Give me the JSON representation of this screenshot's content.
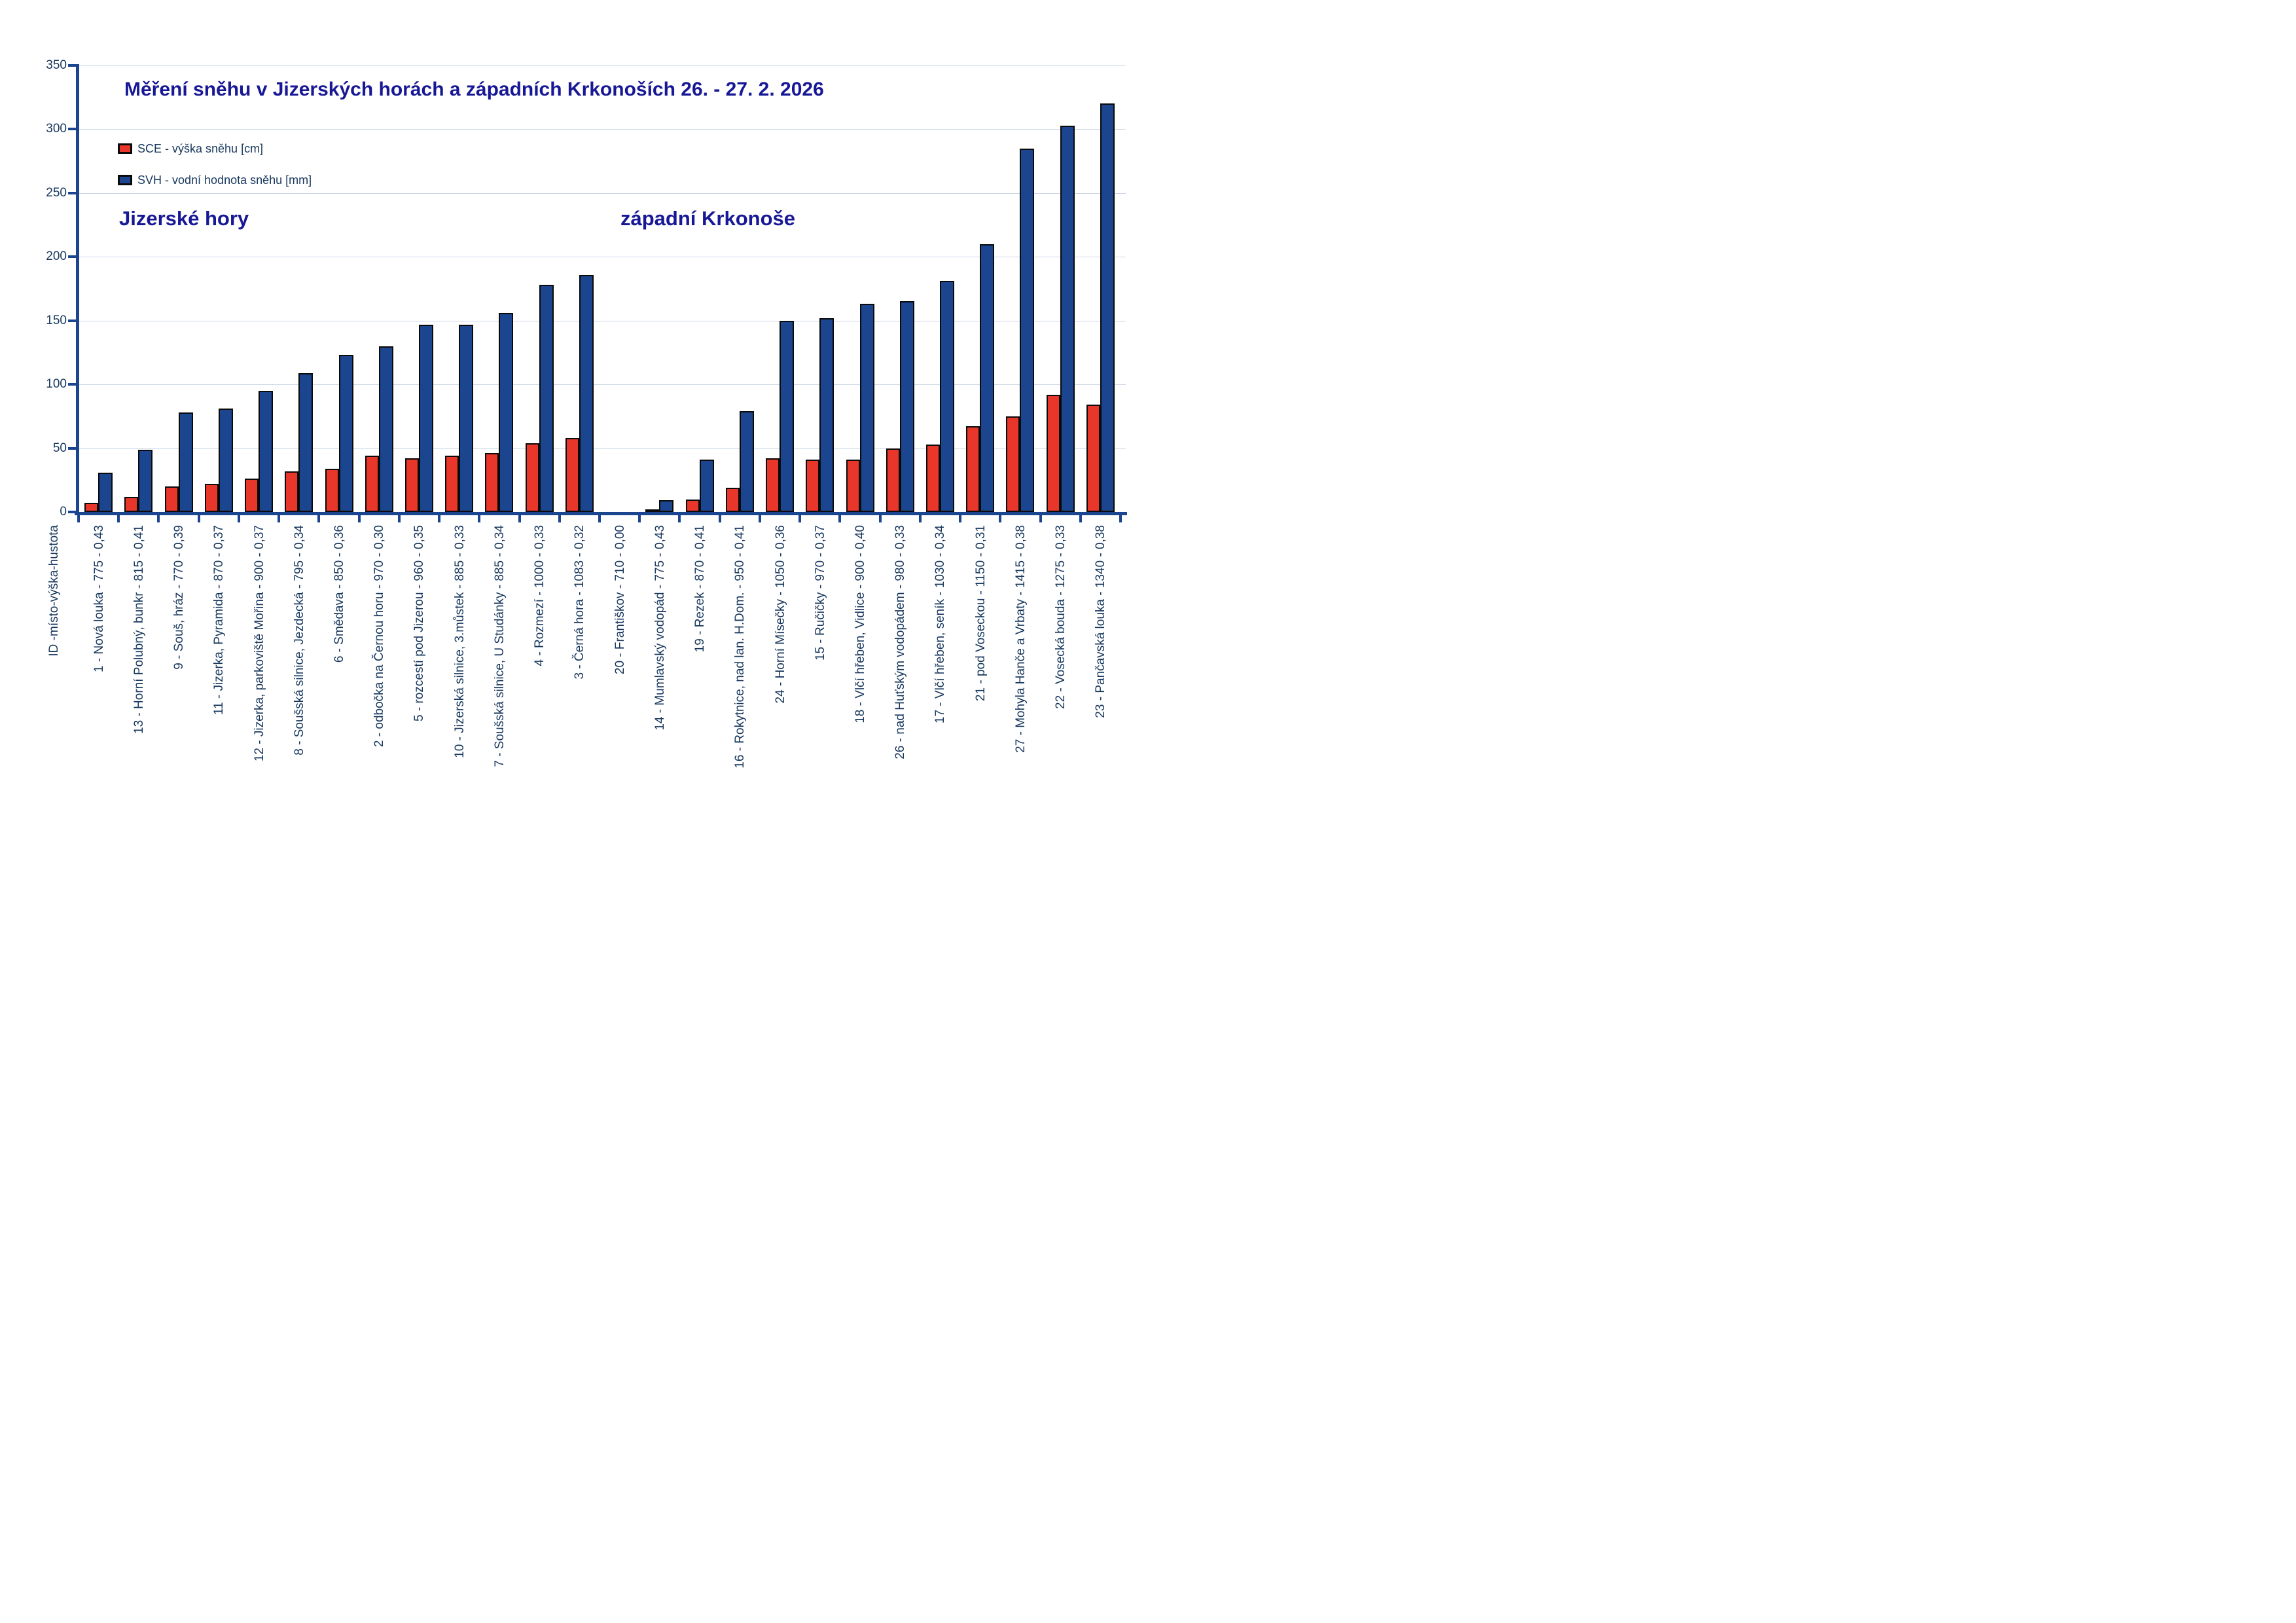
{
  "title": "Měření sněhu v Jizerských horách a západních Krkonoších 26. - 27. 2. 2026",
  "sections": {
    "left": "Jizerské hory",
    "right": "západní Krkonoše"
  },
  "legend": {
    "items": [
      {
        "id": "SCE",
        "label": "SCE - výška sněhu [cm]",
        "color": "#e8362b"
      },
      {
        "id": "SVH",
        "label": "SVH - vodní hodnota sněhu [mm]",
        "color": "#1c4590"
      }
    ]
  },
  "axis": {
    "x_title": "ID -místo-výška-hustota",
    "y_ticks": [
      0,
      50,
      100,
      150,
      200,
      250,
      300,
      350
    ]
  },
  "colors": {
    "sce_bar": "#e8362b",
    "svh_bar": "#1c4590",
    "bar_border": "#0a0a0a",
    "axis_line": "#1c4590",
    "gridline": "#c9d6e6",
    "title_text": "#181896",
    "section_text": "#181896",
    "label_text": "#17375d"
  },
  "chart_data": {
    "type": "bar",
    "title": "Měření sněhu v Jizerských horách a západních Krkonoších 26. - 27. 2. 2026",
    "xlabel": "ID -místo-výška-hustota",
    "ylabel": "",
    "ylim": [
      0,
      350
    ],
    "grid": true,
    "legend_position": "top-left-inside",
    "group_labels": [
      "Jizerské hory",
      "západní Krkonoše"
    ],
    "categories": [
      "1 - Nová louka - 775 - 0,43",
      "13 - Horní Polubný, bunkr - 815 - 0,41",
      "9 - Souš, hráz - 770 - 0,39",
      "11 - Jizerka, Pyramida - 870 - 0,37",
      "12 - Jizerka, parkoviště Mořina - 900 - 0,37",
      "8 - Soušská silnice, Jezdecká - 795 - 0,34",
      "6 - Smědava - 850 - 0,36",
      "2 - odbočka na Černou horu - 970 - 0,30",
      "5 - rozcestí pod Jizerou - 960 - 0,35",
      "10 - Jizerská silnice, 3.můstek - 885 - 0,33",
      "7 - Soušská silnice, U Studánky - 885 - 0,34",
      "4 - Rozmezí - 1000 - 0,33",
      "3 - Černá hora - 1083 - 0,32",
      "20 - Františkov - 710 - 0,00",
      "14 - Mumlavský vodopád - 775 - 0,43",
      "19 - Rezek - 870 - 0,41",
      "16 - Rokytnice, nad lan. H.Dom. - 950 - 0,41",
      "24 - Horní Mísečky - 1050 - 0,36",
      "15 - Ručičky - 970 - 0,37",
      "18 - Vlčí hřeben, Vidlice - 900 - 0,40",
      "26 - nad Huťským vodopádem - 980 - 0,33",
      "17 - Vlčí hřeben, seník - 1030 - 0,34",
      "21 - pod Voseckou - 1150 - 0,31",
      "27 - Mohyla Hanče a Vrbaty - 1415 - 0,38",
      "22 - Vosecká bouda - 1275 - 0,33",
      "23 - Pančavská louka - 1340 - 0,38"
    ],
    "series": [
      {
        "name": "SCE - výška sněhu [cm]",
        "values": [
          7,
          12,
          20,
          22,
          26,
          32,
          34,
          44,
          42,
          44,
          46,
          54,
          58,
          0,
          2,
          10,
          19,
          42,
          41,
          41,
          50,
          53,
          67,
          75,
          92,
          84
        ]
      },
      {
        "name": "SVH - vodní hodnota sněhu [mm]",
        "values": [
          31,
          49,
          78,
          81,
          95,
          109,
          123,
          130,
          147,
          147,
          156,
          178,
          186,
          0,
          9,
          41,
          79,
          150,
          152,
          163,
          165,
          181,
          210,
          285,
          303,
          320
        ]
      }
    ]
  }
}
